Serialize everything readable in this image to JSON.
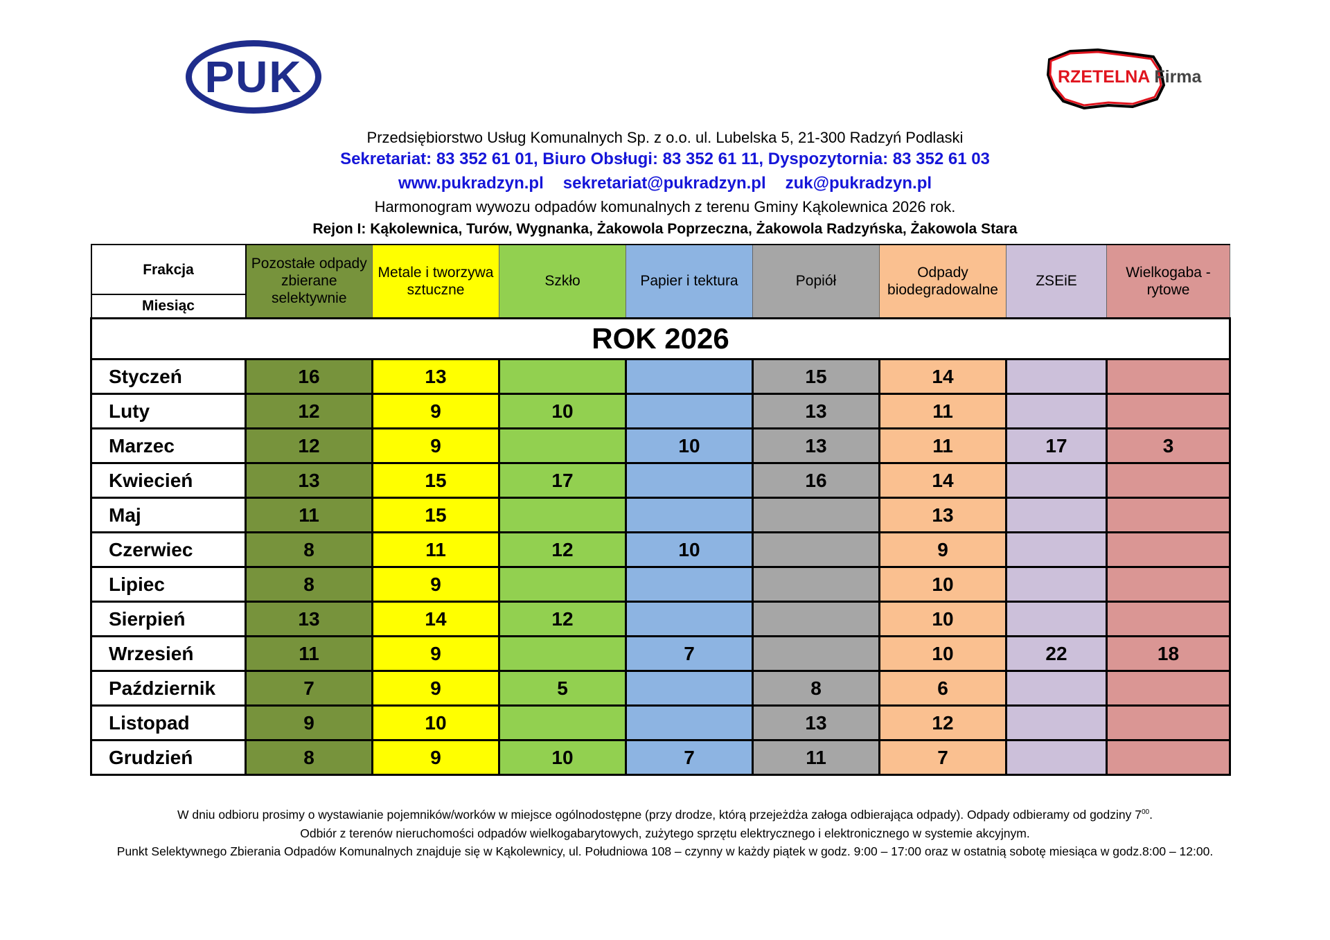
{
  "logos": {
    "left": "PUK",
    "right": "RZETELNA Firma",
    "right_red": "RZETELNA",
    "right_gray": "Firma"
  },
  "header": {
    "company": "Przedsiębiorstwo Usług Komunalnych Sp. z o.o.  ul. Lubelska 5, 21-300 Radzyń Podlaski",
    "phones": "Sekretariat: 83 352 61 01, Biuro Obsługi: 83 352 61 11, Dyspozytornia: 83 352 61 03",
    "links": [
      "www.pukradzyn.pl",
      "sekretariat@pukradzyn.pl",
      "zuk@pukradzyn.pl"
    ],
    "title": "Harmonogram wywozu odpadów komunalnych  z terenu Gminy Kąkolewnica 2026 rok.",
    "region": "Rejon I:  Kąkolewnica, Turów, Wygnanka, Żakowola Poprzeczna, Żakowola Radzyńska, Żakowola Stara"
  },
  "table": {
    "corner_top": "Frakcja",
    "corner_bottom": "Miesiąc",
    "columns": [
      {
        "label": "Pozostałe odpady zbierane selektywnie",
        "color": "#77933c"
      },
      {
        "label": "Metale i tworzywa sztuczne",
        "color": "#ffff00"
      },
      {
        "label": "Szkło",
        "color": "#92d050"
      },
      {
        "label": "Papier i tektura",
        "color": "#8db4e2"
      },
      {
        "label": "Popiół",
        "color": "#a6a6a6"
      },
      {
        "label": "Odpady biodegradowalne",
        "color": "#fac090"
      },
      {
        "label": "ZSEiE",
        "color": "#ccc0da"
      },
      {
        "label": "Wielkogaba - rytowe",
        "color": "#da9694"
      }
    ],
    "year_label": "ROK 2026",
    "rows": [
      {
        "month": "Styczeń",
        "values": [
          "16",
          "13",
          "",
          "",
          "15",
          "14",
          "",
          ""
        ]
      },
      {
        "month": "Luty",
        "values": [
          "12",
          "9",
          "10",
          "",
          "13",
          "11",
          "",
          ""
        ]
      },
      {
        "month": "Marzec",
        "values": [
          "12",
          "9",
          "",
          "10",
          "13",
          "11",
          "17",
          "3"
        ]
      },
      {
        "month": "Kwiecień",
        "values": [
          "13",
          "15",
          "17",
          "",
          "16",
          "14",
          "",
          ""
        ]
      },
      {
        "month": "Maj",
        "values": [
          "11",
          "15",
          "",
          "",
          "",
          "13",
          "",
          ""
        ]
      },
      {
        "month": "Czerwiec",
        "values": [
          "8",
          "11",
          "12",
          "10",
          "",
          "9",
          "",
          ""
        ]
      },
      {
        "month": "Lipiec",
        "values": [
          "8",
          "9",
          "",
          "",
          "",
          "10",
          "",
          ""
        ]
      },
      {
        "month": "Sierpień",
        "values": [
          "13",
          "14",
          "12",
          "",
          "",
          "10",
          "",
          ""
        ]
      },
      {
        "month": "Wrzesień",
        "values": [
          "11",
          "9",
          "",
          "7",
          "",
          "10",
          "22",
          "18"
        ]
      },
      {
        "month": "Październik",
        "values": [
          "7",
          "9",
          "5",
          "",
          "8",
          "6",
          "",
          ""
        ]
      },
      {
        "month": "Listopad",
        "values": [
          "9",
          "10",
          "",
          "",
          "13",
          "12",
          "",
          ""
        ]
      },
      {
        "month": "Grudzień",
        "values": [
          "8",
          "9",
          "10",
          "7",
          "11",
          "7",
          "",
          ""
        ]
      }
    ]
  },
  "footer": {
    "line1": "W dniu odbioru prosimy o wystawianie pojemników/worków w miejsce ogólnodostępne (przy drodze, którą przejeżdża załoga odbierająca odpady). Odpady odbieramy od godziny 7",
    "line1_sup": "00",
    "line1_end": ".",
    "line2": "Odbiór z terenów nieruchomości odpadów wielkogabarytowych, zużytego sprzętu elektrycznego i elektronicznego w systemie akcyjnym.",
    "line3": "Punkt Selektywnego Zbierania Odpadów Komunalnych znajduje się w Kąkolewnicy, ul. Południowa 108 – czynny w każdy piątek w godz. 9:00 – 17:00 oraz w ostatnią sobotę miesiąca w godz.8:00 – 12:00."
  }
}
